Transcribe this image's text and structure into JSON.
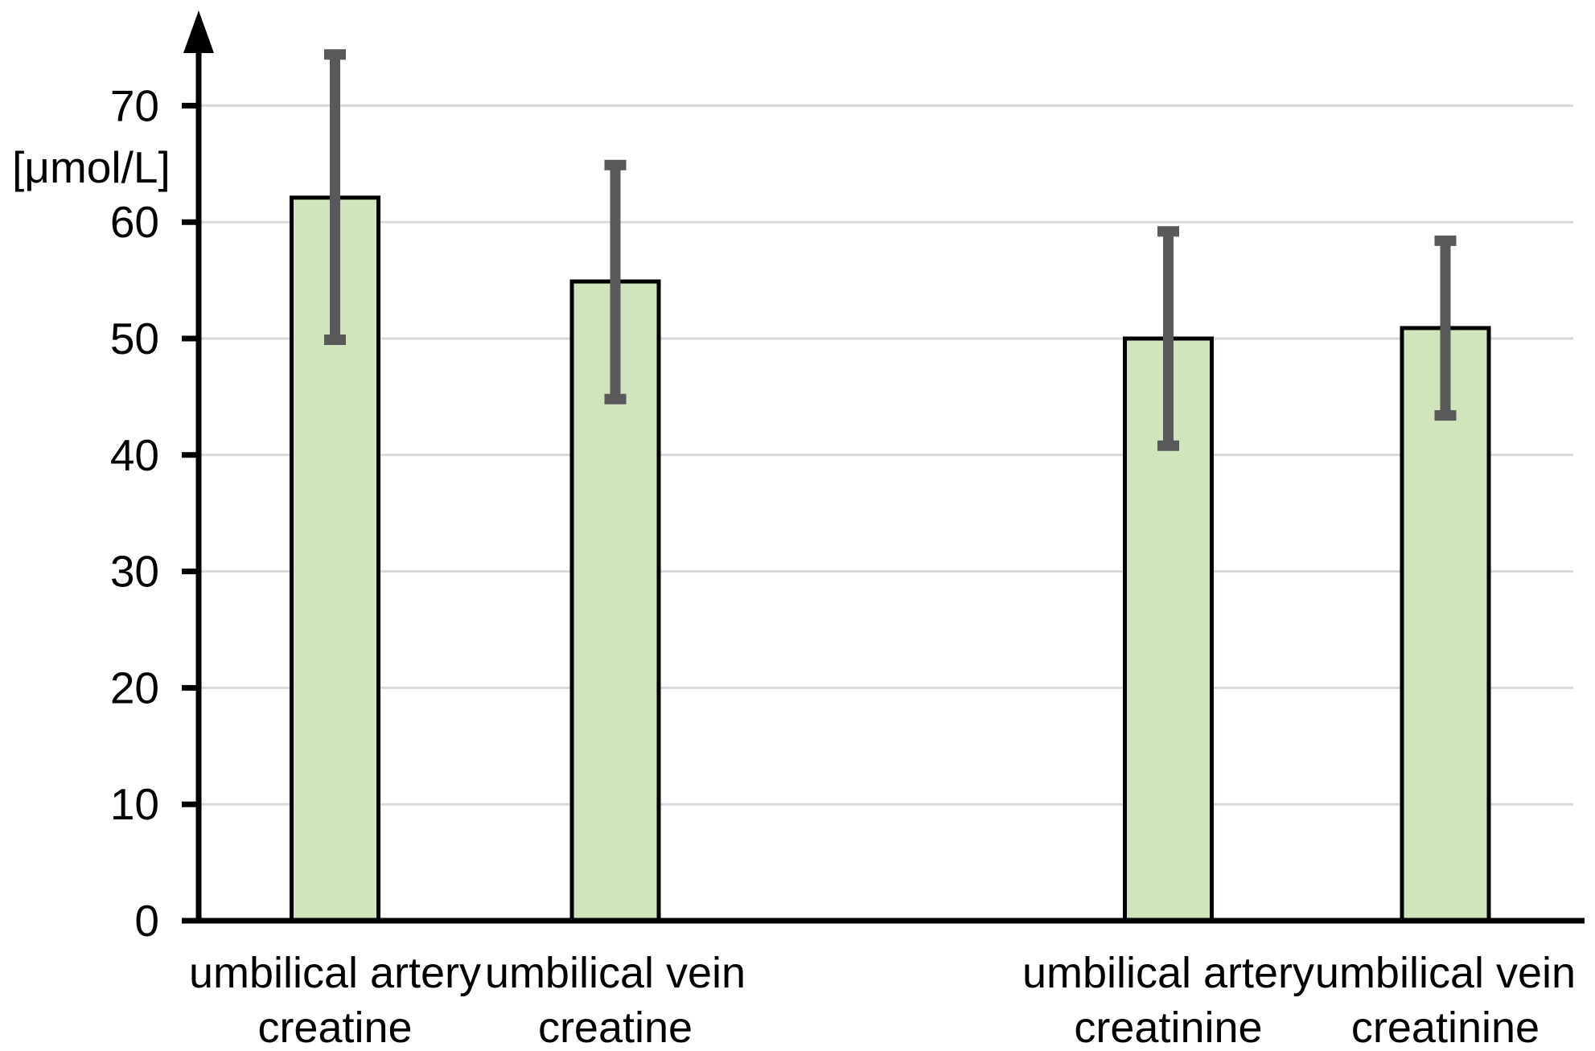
{
  "chart_data": {
    "type": "bar",
    "title": "",
    "xlabel": "",
    "ylabel": "[μmol/L]",
    "ylim": [
      0,
      78
    ],
    "yticks": [
      0,
      10,
      20,
      30,
      40,
      50,
      60,
      70
    ],
    "grid": true,
    "legend": false,
    "categories": [
      {
        "line1": "umbilical artery",
        "line2": "creatine"
      },
      {
        "line1": "umbilical vein",
        "line2": "creatine"
      },
      {
        "line1": "umbilical artery",
        "line2": "creatinine"
      },
      {
        "line1": "umbilical vein",
        "line2": "creatinine"
      }
    ],
    "values": [
      62.1,
      54.9,
      50.0,
      50.9
    ],
    "error_low": [
      49.9,
      44.8,
      40.8,
      43.4
    ],
    "error_high": [
      74.4,
      64.9,
      59.2,
      58.4
    ],
    "colors": {
      "bar_fill": "#d1e5bd",
      "bar_border": "#000000",
      "error_bar": "#595959",
      "gridline": "#d9d9d9",
      "axis": "#000000",
      "text": "#000000",
      "background": "#ffffff"
    }
  }
}
